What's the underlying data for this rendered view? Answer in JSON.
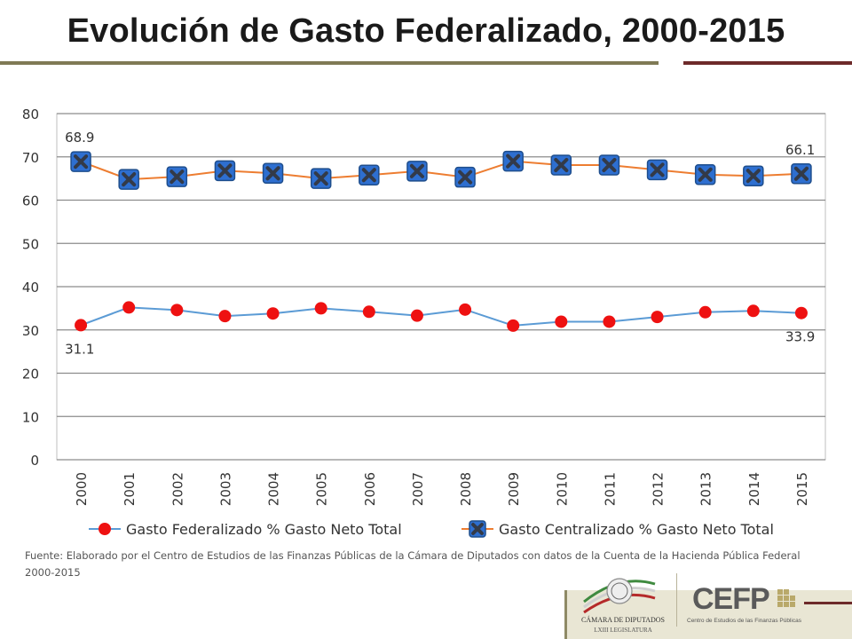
{
  "title": "Evolución de Gasto Federalizado, 2000-2015",
  "source": "Fuente: Elaborado por el Centro de Estudios de las Finanzas Públicas de la Cámara de Diputados con datos de la Cuenta de la Hacienda Pública Federal 2000-2015",
  "footer": {
    "camara_line1": "CÁMARA DE DIPUTADOS",
    "camara_line2": "LXIII LEGISLATURA",
    "cefp_label": "CEFP",
    "cefp_sub": "Centro de Estudios de las Finanzas Públicas"
  },
  "colors": {
    "title_rule_left": "#7f7a55",
    "title_rule_right": "#6d2a2a",
    "federalizado_line": "#5b9bd5",
    "federalizado_marker": "#ee1111",
    "centralizado_line": "#ed7d31",
    "centralizado_marker": "#2e6fd0",
    "centralizado_marker_edge": "#1f4e8c",
    "gridline": "#8c8c8c"
  },
  "chart_data": {
    "type": "line",
    "title": "Evolución de Gasto Federalizado, 2000-2015",
    "xlabel": "",
    "ylabel": "",
    "ylim": [
      0,
      80
    ],
    "yticks": [
      0,
      10,
      20,
      30,
      40,
      50,
      60,
      70,
      80
    ],
    "grid": true,
    "legend": "bottom",
    "categories": [
      "2000",
      "2001",
      "2002",
      "2003",
      "2004",
      "2005",
      "2006",
      "2007",
      "2008",
      "2009",
      "2010",
      "2011",
      "2012",
      "2013",
      "2014",
      "2015"
    ],
    "series": [
      {
        "name": "Gasto Federalizado % Gasto Neto Total",
        "values": [
          31.1,
          35.2,
          34.6,
          33.2,
          33.8,
          35.0,
          34.2,
          33.3,
          34.7,
          31.0,
          31.9,
          31.9,
          33.0,
          34.1,
          34.4,
          33.9
        ],
        "marker": "circle",
        "end_labels": [
          "31.1",
          "33.9"
        ]
      },
      {
        "name": "Gasto Centralizado % Gasto Neto Total",
        "values": [
          68.9,
          64.8,
          65.4,
          66.8,
          66.2,
          65.0,
          65.8,
          66.7,
          65.3,
          69.0,
          68.1,
          68.1,
          67.0,
          65.9,
          65.6,
          66.1
        ],
        "marker": "x-square",
        "end_labels": [
          "68.9",
          "66.1"
        ]
      }
    ]
  }
}
